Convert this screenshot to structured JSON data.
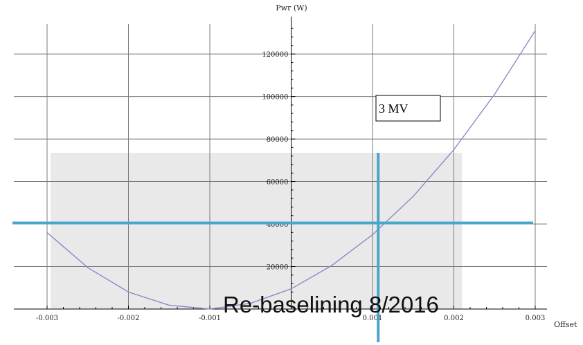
{
  "chart_data": {
    "type": "line",
    "title": "",
    "xlabel": "Offset",
    "ylabel": "Pwr (W)",
    "xlim": [
      -0.003,
      0.003
    ],
    "ylim": [
      0,
      135000
    ],
    "x_ticks": [
      {
        "value": -0.003,
        "label": "-0.003"
      },
      {
        "value": -0.002,
        "label": "-0.002"
      },
      {
        "value": -0.001,
        "label": "-0.001"
      },
      {
        "value": 0.001,
        "label": "0.001"
      },
      {
        "value": 0.002,
        "label": "0.002"
      },
      {
        "value": 0.003,
        "label": "0.003"
      }
    ],
    "y_ticks": [
      {
        "value": 20000,
        "label": "20000"
      },
      {
        "value": 40000,
        "label": "40000"
      },
      {
        "value": 60000,
        "label": "60000"
      },
      {
        "value": 80000,
        "label": "80000"
      },
      {
        "value": 100000,
        "label": "100000"
      },
      {
        "value": 120000,
        "label": "120000"
      }
    ],
    "grid": true,
    "series": [
      {
        "x": [
          -0.003,
          -0.0025,
          -0.002,
          -0.0015,
          -0.001,
          -0.0005,
          0.0,
          0.0005,
          0.001,
          0.0015,
          0.002,
          0.0025,
          0.003
        ],
        "values": [
          36000,
          19500,
          8000,
          1800,
          0,
          2700,
          9500,
          20500,
          35000,
          53000,
          75000,
          101000,
          131000
        ],
        "color": "#8a88c8"
      }
    ],
    "shaded_region": {
      "x": [
        -0.003,
        0.0021
      ],
      "y": [
        0,
        73500
      ],
      "color": "#e9e9e9"
    },
    "reference_lines": {
      "horizontal_y": 40500,
      "vertical_x": 0.00107,
      "color": "#4aa6c8"
    },
    "annotations": {
      "label_box": "3 MV",
      "footer": "Re-baselining 8/2016"
    }
  }
}
